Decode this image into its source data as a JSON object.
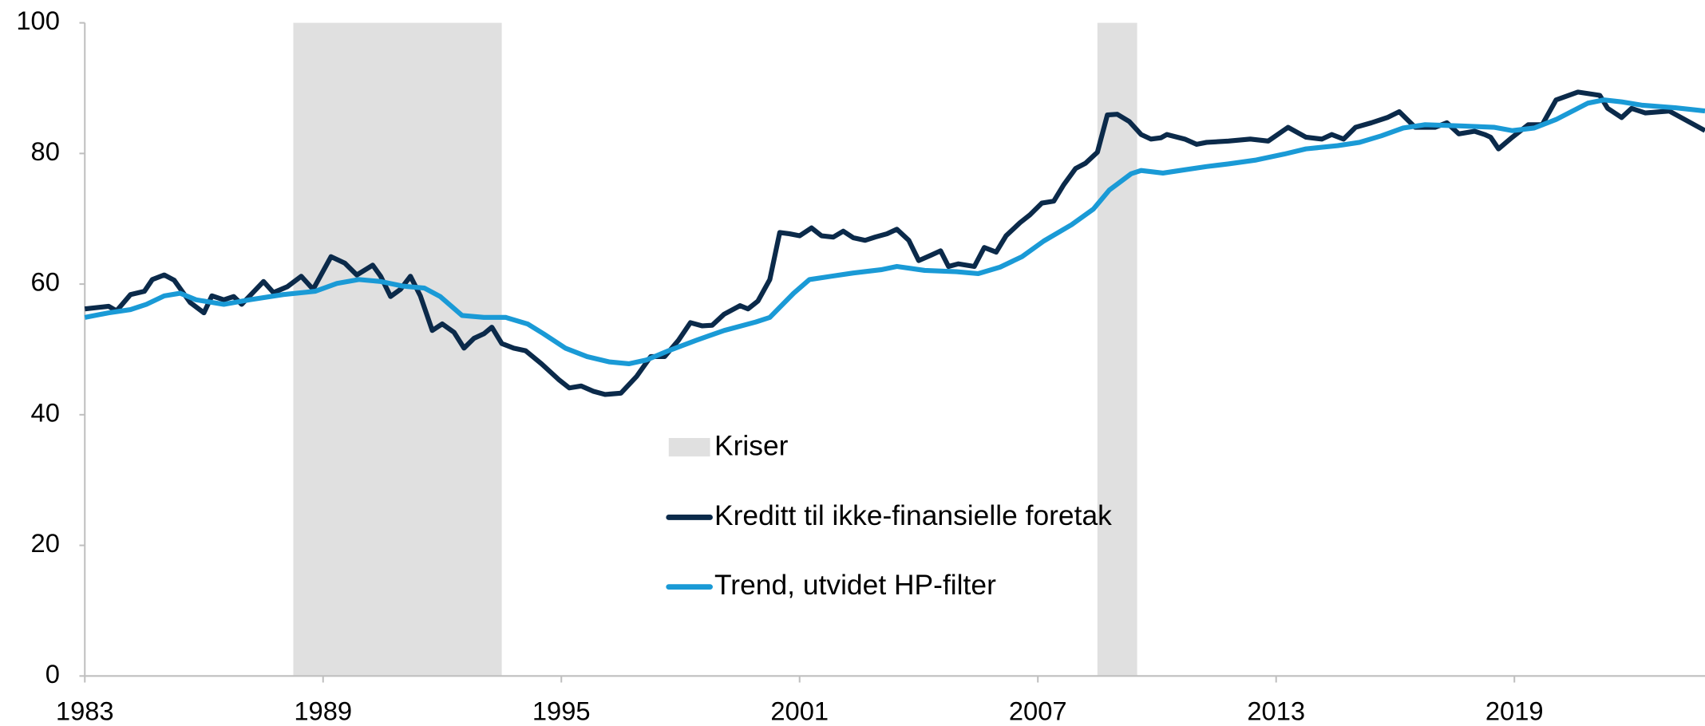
{
  "chart_data": {
    "type": "line",
    "xlim": [
      1983,
      2023.8
    ],
    "ylim": [
      0,
      100
    ],
    "xticks": [
      1983,
      1989,
      1995,
      2001,
      2007,
      2013,
      2019
    ],
    "yticks": [
      0,
      20,
      40,
      60,
      80,
      100
    ],
    "shaded": {
      "name": "Kriser",
      "color": "#e0e0e0",
      "spans": [
        [
          1988.25,
          1993.5
        ],
        [
          2008.5,
          2009.5
        ]
      ]
    },
    "series": [
      {
        "name": "Kreditt til ikke-finansielle foretak",
        "color": "#0b2a4a",
        "x": [
          1983.0,
          1983.6,
          1983.8,
          1984.15,
          1984.5,
          1984.7,
          1985.0,
          1985.25,
          1985.65,
          1986.0,
          1986.2,
          1986.5,
          1986.75,
          1986.95,
          1987.5,
          1987.75,
          1988.1,
          1988.45,
          1988.75,
          1989.2,
          1989.55,
          1989.85,
          1990.25,
          1990.45,
          1990.7,
          1990.95,
          1991.2,
          1991.45,
          1991.75,
          1992.0,
          1992.3,
          1992.55,
          1992.8,
          1993.05,
          1993.25,
          1993.5,
          1993.8,
          1994.1,
          1994.5,
          1994.95,
          1995.2,
          1995.5,
          1995.8,
          1996.1,
          1996.5,
          1996.9,
          1997.25,
          1997.6,
          1997.95,
          1998.25,
          1998.55,
          1998.8,
          1999.1,
          1999.5,
          1999.7,
          1999.95,
          2000.25,
          2000.5,
          2000.75,
          2001.0,
          2001.3,
          2001.55,
          2001.85,
          2002.1,
          2002.35,
          2002.65,
          2002.9,
          2003.2,
          2003.45,
          2003.75,
          2004.0,
          2004.3,
          2004.55,
          2004.75,
          2005.0,
          2005.4,
          2005.65,
          2005.95,
          2006.2,
          2006.55,
          2006.8,
          2007.1,
          2007.4,
          2007.65,
          2007.95,
          2008.2,
          2008.5,
          2008.75,
          2009.0,
          2009.3,
          2009.6,
          2009.85,
          2010.1,
          2010.25,
          2010.7,
          2011.0,
          2011.25,
          2011.8,
          2012.35,
          2012.8,
          2013.3,
          2013.75,
          2014.15,
          2014.4,
          2014.7,
          2015.0,
          2015.4,
          2015.8,
          2016.1,
          2016.5,
          2017.0,
          2017.3,
          2017.6,
          2018.0,
          2018.25,
          2018.4,
          2018.6,
          2018.95,
          2019.35,
          2019.7,
          2020.05,
          2020.6,
          2021.15,
          2021.35,
          2021.7,
          2021.95,
          2022.3,
          2022.9,
          2023.8
        ],
        "values": [
          56.2,
          56.6,
          55.9,
          58.4,
          58.9,
          60.7,
          61.4,
          60.6,
          57.2,
          55.6,
          58.2,
          57.6,
          58.1,
          56.9,
          60.4,
          58.7,
          59.6,
          61.2,
          59.2,
          64.2,
          63.2,
          61.4,
          62.9,
          61.2,
          58.1,
          59.2,
          61.2,
          58.2,
          52.9,
          53.9,
          52.6,
          50.2,
          51.7,
          52.4,
          53.4,
          50.9,
          50.2,
          49.8,
          47.8,
          45.3,
          44.1,
          44.4,
          43.6,
          43.1,
          43.3,
          45.9,
          48.9,
          48.9,
          51.4,
          54.1,
          53.6,
          53.7,
          55.4,
          56.7,
          56.2,
          57.4,
          60.7,
          67.9,
          67.7,
          67.4,
          68.6,
          67.4,
          67.2,
          68.1,
          67.1,
          66.7,
          67.2,
          67.7,
          68.4,
          66.7,
          63.6,
          64.4,
          65.1,
          62.7,
          63.1,
          62.7,
          65.6,
          64.9,
          67.4,
          69.4,
          70.6,
          72.4,
          72.7,
          75.2,
          77.7,
          78.5,
          80.2,
          85.9,
          86.0,
          84.9,
          82.9,
          82.2,
          82.4,
          82.9,
          82.2,
          81.4,
          81.7,
          81.9,
          82.2,
          81.9,
          84.0,
          82.5,
          82.2,
          82.9,
          82.2,
          84.0,
          84.7,
          85.5,
          86.4,
          84.0,
          84.0,
          84.7,
          83.0,
          83.4,
          82.9,
          82.5,
          80.7,
          82.5,
          84.4,
          84.4,
          88.2,
          89.4,
          88.9,
          86.9,
          85.5,
          86.9,
          86.2,
          86.5,
          83.5
        ]
      },
      {
        "name": "Trend, utvidet HP-filter",
        "color": "#1a9ad6",
        "x": [
          1983.0,
          1983.6,
          1984.15,
          1984.55,
          1985.0,
          1985.4,
          1985.8,
          1986.5,
          1987.15,
          1988.0,
          1988.8,
          1989.35,
          1989.9,
          1990.45,
          1991.0,
          1991.55,
          1991.95,
          1992.5,
          1993.05,
          1993.6,
          1994.15,
          1994.55,
          1995.1,
          1995.65,
          1996.2,
          1996.7,
          1997.15,
          1997.7,
          1998.4,
          1999.1,
          1999.9,
          2000.25,
          2000.85,
          2001.25,
          2001.8,
          2002.35,
          2003.05,
          2003.45,
          2004.15,
          2004.95,
          2005.5,
          2006.05,
          2006.6,
          2007.15,
          2007.85,
          2008.4,
          2008.8,
          2009.35,
          2009.6,
          2010.15,
          2010.7,
          2011.25,
          2011.8,
          2012.5,
          2013.2,
          2013.75,
          2014.55,
          2015.1,
          2015.65,
          2016.2,
          2016.75,
          2017.7,
          2018.5,
          2018.95,
          2019.5,
          2020.05,
          2020.85,
          2021.25,
          2021.7,
          2022.2,
          2023.05,
          2023.8
        ],
        "values": [
          54.9,
          55.6,
          56.1,
          56.9,
          58.2,
          58.6,
          57.6,
          56.9,
          57.6,
          58.4,
          58.9,
          60.1,
          60.7,
          60.4,
          59.7,
          59.4,
          58.1,
          55.2,
          54.9,
          54.9,
          53.9,
          52.4,
          50.2,
          48.9,
          48.1,
          47.8,
          48.4,
          49.8,
          51.4,
          52.9,
          54.2,
          54.9,
          58.6,
          60.7,
          61.2,
          61.7,
          62.2,
          62.7,
          62.1,
          61.9,
          61.6,
          62.6,
          64.2,
          66.6,
          69.1,
          71.5,
          74.4,
          76.9,
          77.4,
          77.0,
          77.5,
          78.0,
          78.4,
          79.0,
          79.9,
          80.7,
          81.2,
          81.7,
          82.7,
          83.9,
          84.4,
          84.2,
          84.0,
          83.5,
          83.9,
          85.2,
          87.7,
          88.2,
          87.9,
          87.4,
          87.0,
          86.5
        ]
      }
    ]
  }
}
